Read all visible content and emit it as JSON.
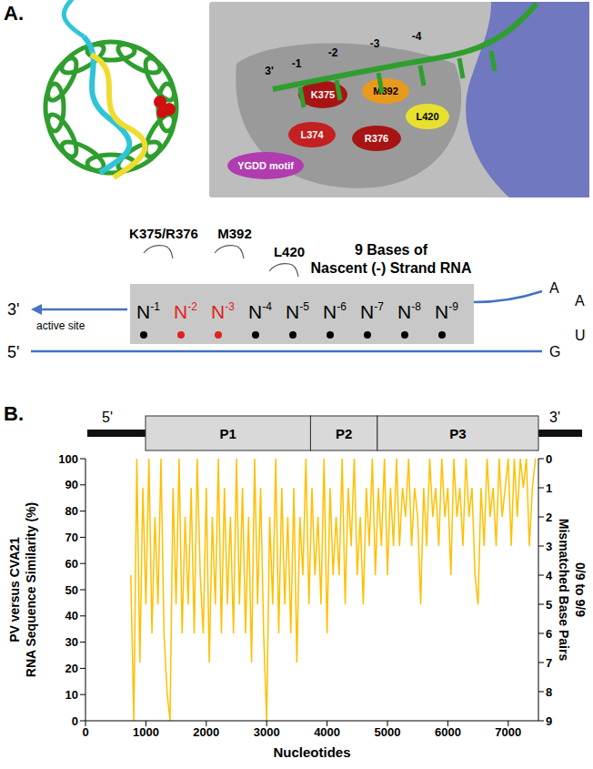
{
  "panel_a": {
    "letter": "A.",
    "structure_labels": [
      "K375",
      "M392",
      "L374",
      "R376",
      "L420",
      "YGDD motif"
    ],
    "rna_labels": [
      "3'",
      "-1",
      "-2",
      "-3",
      "-4"
    ],
    "schematic": {
      "residue_labels": [
        "K375/R376",
        "M392",
        "L420"
      ],
      "title": [
        "9 Bases of",
        "Nascent (-) Strand RNA"
      ],
      "bases": [
        {
          "label": "N",
          "superscript": "-1",
          "color": "#000000"
        },
        {
          "label": "N",
          "superscript": "-2",
          "color": "#e02020"
        },
        {
          "label": "N",
          "superscript": "-3",
          "color": "#e02020"
        },
        {
          "label": "N",
          "superscript": "-4",
          "color": "#000000"
        },
        {
          "label": "N",
          "superscript": "-5",
          "color": "#000000"
        },
        {
          "label": "N",
          "superscript": "-6",
          "color": "#000000"
        },
        {
          "label": "N",
          "superscript": "-7",
          "color": "#000000"
        },
        {
          "label": "N",
          "superscript": "-8",
          "color": "#000000"
        },
        {
          "label": "N",
          "superscript": "-9",
          "color": "#000000"
        }
      ],
      "three_prime": "3'",
      "active_site": "active site",
      "five_prime": "5'",
      "loop": [
        "A",
        "A",
        "U",
        "G"
      ]
    }
  },
  "panel_b": {
    "letter": "B.",
    "genome_map": {
      "five_prime": "5'",
      "regions": [
        "P1",
        "P2",
        "P3"
      ],
      "three_prime": "3'"
    }
  },
  "chart_data": {
    "type": "line",
    "x_label": "Nucleotides",
    "y_label": [
      "PV versus CVA21",
      "RNA Sequence Similarity (%)"
    ],
    "y2_label": [
      "Mismatched Base Pairs",
      "0/9 to 9/9"
    ],
    "color": "#ffc000",
    "grid": false,
    "xlim": [
      0,
      7500
    ],
    "xticks": [
      0,
      1000,
      2000,
      3000,
      4000,
      5000,
      6000,
      7000
    ],
    "ylim": [
      0,
      100
    ],
    "yticks": [
      0,
      10,
      20,
      30,
      40,
      50,
      60,
      70,
      80,
      90,
      100
    ],
    "y2lim": [
      9,
      0
    ],
    "y2ticks": [
      0,
      1,
      2,
      3,
      4,
      5,
      6,
      7,
      8,
      9
    ],
    "x": [
      750,
      800,
      850,
      900,
      950,
      1000,
      1050,
      1100,
      1150,
      1200,
      1250,
      1300,
      1350,
      1400,
      1450,
      1500,
      1550,
      1600,
      1650,
      1700,
      1750,
      1800,
      1850,
      1900,
      1950,
      2000,
      2050,
      2100,
      2150,
      2200,
      2250,
      2300,
      2350,
      2400,
      2450,
      2500,
      2550,
      2600,
      2650,
      2700,
      2750,
      2800,
      2850,
      2900,
      2950,
      3000,
      3050,
      3100,
      3150,
      3200,
      3250,
      3300,
      3350,
      3400,
      3450,
      3500,
      3550,
      3600,
      3650,
      3700,
      3750,
      3800,
      3850,
      3900,
      3950,
      4000,
      4050,
      4100,
      4150,
      4200,
      4250,
      4300,
      4350,
      4400,
      4450,
      4500,
      4550,
      4600,
      4650,
      4700,
      4750,
      4800,
      4850,
      4900,
      4950,
      5000,
      5050,
      5100,
      5150,
      5200,
      5250,
      5300,
      5350,
      5400,
      5450,
      5500,
      5550,
      5600,
      5650,
      5700,
      5750,
      5800,
      5850,
      5900,
      5950,
      6000,
      6050,
      6100,
      6150,
      6200,
      6250,
      6300,
      6350,
      6400,
      6450,
      6500,
      6550,
      6600,
      6650,
      6700,
      6750,
      6800,
      6850,
      6900,
      6950,
      7000,
      7050,
      7100,
      7150,
      7200,
      7250,
      7300,
      7350,
      7400,
      7450
    ],
    "values": [
      55.6,
      0,
      100,
      22.2,
      88.9,
      44.4,
      100,
      33.3,
      77.8,
      44.4,
      100,
      33.3,
      11.1,
      0,
      88.9,
      44.4,
      100,
      33.3,
      77.8,
      44.4,
      88.9,
      33.3,
      100,
      55.6,
      33.3,
      88.9,
      22.2,
      77.8,
      44.4,
      100,
      33.3,
      88.9,
      44.4,
      77.8,
      33.3,
      100,
      44.4,
      88.9,
      33.3,
      77.8,
      22.2,
      100,
      44.4,
      88.9,
      33.3,
      0,
      77.8,
      44.4,
      100,
      33.3,
      88.9,
      44.4,
      77.8,
      33.3,
      88.9,
      22.2,
      77.8,
      55.6,
      100,
      44.4,
      88.9,
      55.6,
      77.8,
      44.4,
      100,
      33.3,
      88.9,
      55.6,
      77.8,
      55.6,
      100,
      44.4,
      88.9,
      66.7,
      100,
      55.6,
      77.8,
      44.4,
      88.9,
      66.7,
      100,
      55.6,
      88.9,
      66.7,
      100,
      55.6,
      88.9,
      66.7,
      100,
      66.7,
      88.9,
      77.8,
      100,
      66.7,
      88.9,
      77.8,
      44.4,
      88.9,
      66.7,
      100,
      77.8,
      88.9,
      66.7,
      100,
      77.8,
      88.9,
      55.6,
      100,
      77.8,
      88.9,
      66.7,
      100,
      77.8,
      88.9,
      55.6,
      44.4,
      88.9,
      66.7,
      100,
      77.8,
      88.9,
      66.7,
      100,
      77.8,
      88.9,
      100,
      66.7,
      100,
      77.8,
      100,
      88.9,
      100,
      66.7,
      88.9,
      100
    ]
  }
}
